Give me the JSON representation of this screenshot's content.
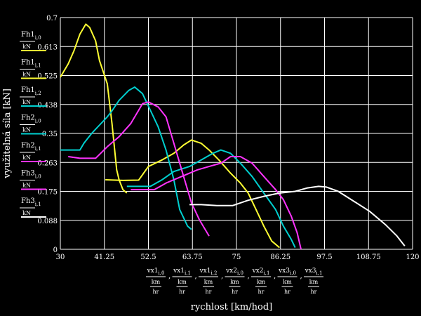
{
  "chart_data": {
    "type": "line",
    "ylabel": "využitelná síla [kN]",
    "xlabel": "rychlost [km/hod]",
    "xlim": [
      30,
      120
    ],
    "ylim": [
      0,
      0.7
    ],
    "x_ticks": [
      "30",
      "41.25",
      "52.5",
      "63.75",
      "75",
      "86.25",
      "97.5",
      "108.75",
      "120"
    ],
    "y_ticks": [
      "0",
      "0.088",
      "0.175",
      "0.263",
      "0.35",
      "0.438",
      "0.525",
      "0.613",
      "0.7"
    ],
    "grid": true,
    "background": "#000000",
    "series": [
      {
        "name": "Fh1i,0 / kN",
        "sub": "i,0",
        "base": "Fh1",
        "color": "#ffff33",
        "points": [
          [
            30,
            0.52
          ],
          [
            32,
            0.56
          ],
          [
            33.5,
            0.6
          ],
          [
            35,
            0.65
          ],
          [
            36.5,
            0.68
          ],
          [
            37.5,
            0.67
          ],
          [
            39,
            0.63
          ],
          [
            40,
            0.57
          ],
          [
            42,
            0.5
          ],
          [
            43.2,
            0.38
          ],
          [
            44.4,
            0.24
          ],
          [
            45,
            0.21
          ],
          [
            46,
            0.18
          ],
          [
            47,
            0.17
          ]
        ]
      },
      {
        "name": "Fh1i,1 / kN",
        "sub": "i,1",
        "base": "Fh1",
        "color": "#ffff33",
        "points": [
          [
            41.5,
            0.21
          ],
          [
            46,
            0.208
          ],
          [
            50,
            0.209
          ],
          [
            52.5,
            0.25
          ],
          [
            56,
            0.27
          ],
          [
            59,
            0.29
          ],
          [
            61.5,
            0.315
          ],
          [
            63.5,
            0.33
          ],
          [
            66,
            0.32
          ],
          [
            68,
            0.3
          ],
          [
            70.5,
            0.27
          ],
          [
            73.5,
            0.23
          ],
          [
            76,
            0.2
          ],
          [
            78,
            0.17
          ],
          [
            80,
            0.12
          ],
          [
            82,
            0.07
          ],
          [
            84,
            0.025
          ],
          [
            86,
            0.005
          ]
        ]
      },
      {
        "name": "Fh1i,2 / kN",
        "sub": "i,2",
        "base": "Fh1",
        "color": "#00d0d0",
        "points": [
          [
            30,
            0.3
          ],
          [
            31.5,
            0.3
          ],
          [
            35,
            0.3
          ],
          [
            36,
            0.32
          ],
          [
            38,
            0.35
          ],
          [
            42,
            0.4
          ],
          [
            43,
            0.415
          ],
          [
            45,
            0.45
          ],
          [
            47.5,
            0.48
          ],
          [
            49,
            0.49
          ],
          [
            51,
            0.47
          ],
          [
            53,
            0.42
          ],
          [
            55,
            0.37
          ],
          [
            57,
            0.3
          ],
          [
            59,
            0.21
          ],
          [
            60.5,
            0.12
          ],
          [
            62.5,
            0.07
          ],
          [
            63.5,
            0.06
          ]
        ]
      },
      {
        "name": "Fh2i,0 / kN",
        "sub": "i,0",
        "base": "Fh2",
        "color": "#00d0d0",
        "points": [
          [
            47,
            0.19
          ],
          [
            50,
            0.19
          ],
          [
            53,
            0.19
          ],
          [
            56,
            0.21
          ],
          [
            59,
            0.235
          ],
          [
            63,
            0.25
          ],
          [
            66,
            0.27
          ],
          [
            69,
            0.29
          ],
          [
            71,
            0.3
          ],
          [
            73.5,
            0.29
          ],
          [
            76,
            0.26
          ],
          [
            79,
            0.22
          ],
          [
            82,
            0.17
          ],
          [
            85,
            0.12
          ],
          [
            87,
            0.07
          ],
          [
            89,
            0.03
          ],
          [
            90,
            0.005
          ]
        ]
      },
      {
        "name": "Fh2i,1 / kN",
        "sub": "i,1",
        "base": "Fh2",
        "color": "#ff33ff",
        "points": [
          [
            32,
            0.28
          ],
          [
            35,
            0.275
          ],
          [
            39,
            0.275
          ],
          [
            42,
            0.31
          ],
          [
            45,
            0.34
          ],
          [
            48,
            0.38
          ],
          [
            50,
            0.42
          ],
          [
            51,
            0.44
          ],
          [
            52.5,
            0.445
          ],
          [
            55,
            0.43
          ],
          [
            57,
            0.4
          ],
          [
            59,
            0.32
          ],
          [
            61.5,
            0.22
          ],
          [
            63.5,
            0.14
          ],
          [
            65.5,
            0.09
          ],
          [
            67,
            0.06
          ],
          [
            68,
            0.04
          ]
        ]
      },
      {
        "name": "Fh3i,0 / kN",
        "sub": "i,0",
        "base": "Fh3",
        "color": "#ff33ff",
        "points": [
          [
            48,
            0.18
          ],
          [
            51,
            0.18
          ],
          [
            54,
            0.18
          ],
          [
            57,
            0.2
          ],
          [
            61,
            0.22
          ],
          [
            65,
            0.24
          ],
          [
            68,
            0.25
          ],
          [
            71,
            0.26
          ],
          [
            73.5,
            0.28
          ],
          [
            76,
            0.28
          ],
          [
            79,
            0.26
          ],
          [
            82,
            0.22
          ],
          [
            85,
            0.18
          ],
          [
            87,
            0.15
          ],
          [
            89,
            0.1
          ],
          [
            90.5,
            0.05
          ],
          [
            91.5,
            0.0
          ]
        ]
      },
      {
        "name": "Fh3i,1 / kN",
        "sub": "i,1",
        "base": "Fh3",
        "color": "#ffffff",
        "points": [
          [
            63,
            0.135
          ],
          [
            66,
            0.135
          ],
          [
            70,
            0.132
          ],
          [
            74,
            0.132
          ],
          [
            78,
            0.148
          ],
          [
            82,
            0.16
          ],
          [
            86,
            0.17
          ],
          [
            90,
            0.175
          ],
          [
            93,
            0.185
          ],
          [
            96,
            0.19
          ],
          [
            98,
            0.188
          ],
          [
            101,
            0.175
          ],
          [
            105,
            0.145
          ],
          [
            109,
            0.115
          ],
          [
            113,
            0.075
          ],
          [
            116,
            0.04
          ],
          [
            118,
            0.01
          ]
        ]
      }
    ],
    "x_fraction_labels": [
      {
        "base": "vx1",
        "sub": "i,0",
        "den_top": "km",
        "den_bot": "hr"
      },
      {
        "base": "vx1",
        "sub": "i,1",
        "den_top": "km",
        "den_bot": "hr"
      },
      {
        "base": "vx1",
        "sub": "i,2",
        "den_top": "km",
        "den_bot": "hr"
      },
      {
        "base": "vx2",
        "sub": "i,0",
        "den_top": "km",
        "den_bot": "hr"
      },
      {
        "base": "vx2",
        "sub": "i,1",
        "den_top": "km",
        "den_bot": "hr"
      },
      {
        "base": "vx3",
        "sub": "i,0",
        "den_top": "km",
        "den_bot": "hr"
      },
      {
        "base": "vx3",
        "sub": "i,1",
        "den_top": "km",
        "den_bot": "hr"
      }
    ],
    "y_fraction_labels": [
      {
        "base": "Fh1",
        "sub": "i,0",
        "den": "kN"
      },
      {
        "base": "Fh1",
        "sub": "i,1",
        "den": "kN"
      },
      {
        "base": "Fh1",
        "sub": "i,2",
        "den": "kN"
      },
      {
        "base": "Fh2",
        "sub": "i,0",
        "den": "kN"
      },
      {
        "base": "Fh2",
        "sub": "i,1",
        "den": "kN"
      },
      {
        "base": "Fh3",
        "sub": "i,0",
        "den": "kN"
      },
      {
        "base": "Fh3",
        "sub": "i,1",
        "den": "kN"
      }
    ]
  }
}
